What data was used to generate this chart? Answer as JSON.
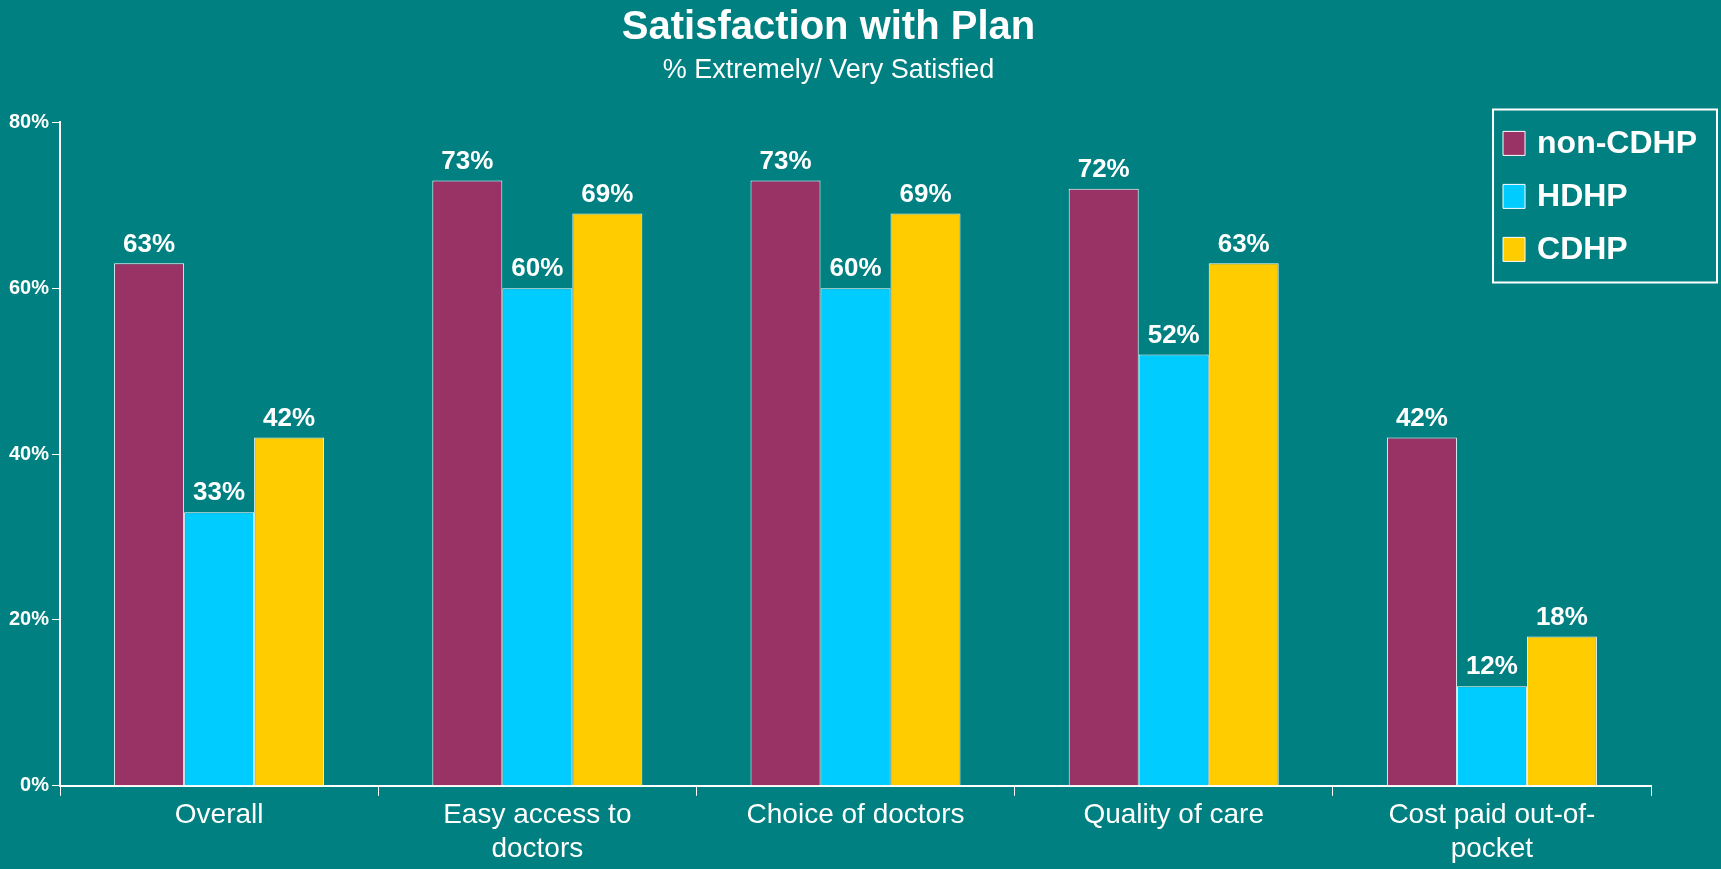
{
  "chart_data": {
    "type": "bar",
    "title": "Satisfaction with Plan",
    "subtitle": "% Extremely/ Very Satisfied",
    "categories": [
      "Overall",
      "Easy access to doctors",
      "Choice of doctors",
      "Quality of care",
      "Cost paid out-of-pocket"
    ],
    "series": [
      {
        "name": "non-CDHP",
        "color": "#993366",
        "values": [
          63,
          73,
          73,
          72,
          42
        ],
        "value_labels": [
          "63%",
          "73%",
          "73%",
          "72%",
          "42%"
        ]
      },
      {
        "name": "HDHP",
        "color": "#00ccff",
        "values": [
          33,
          60,
          60,
          52,
          12
        ],
        "value_labels": [
          "33%",
          "60%",
          "60%",
          "52%",
          "12%"
        ]
      },
      {
        "name": "CDHP",
        "color": "#ffcc00",
        "values": [
          42,
          69,
          69,
          63,
          18
        ],
        "value_labels": [
          "42%",
          "69%",
          "69%",
          "63%",
          "18%"
        ]
      }
    ],
    "ylim": [
      0,
      80
    ],
    "yticks": [
      {
        "value": 0,
        "label": "0%"
      },
      {
        "value": 20,
        "label": "20%"
      },
      {
        "value": 40,
        "label": "40%"
      },
      {
        "value": 60,
        "label": "60%"
      },
      {
        "value": 80,
        "label": "80%"
      }
    ],
    "grid": false,
    "legend": "top right"
  }
}
